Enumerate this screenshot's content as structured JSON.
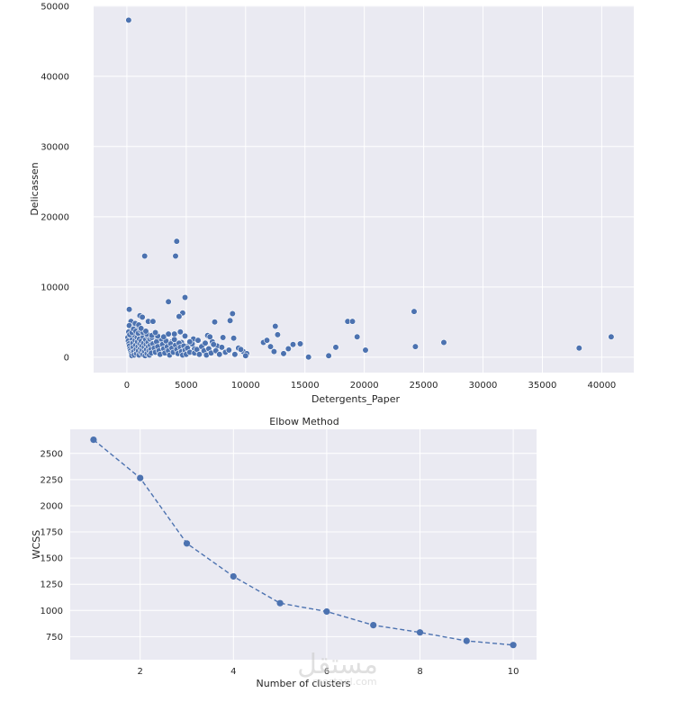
{
  "colors": {
    "panel_bg": "#eaeaf2",
    "grid": "#ffffff",
    "marker": "#4c72b0",
    "marker_edge": "#ffffff"
  },
  "watermark": {
    "main": "مستقل",
    "sub": "mostaql.com"
  },
  "chart_data": [
    {
      "type": "scatter",
      "title": "",
      "xlabel": "Detergents_Paper",
      "ylabel": "Delicassen",
      "xlim": [
        -2800,
        42700
      ],
      "ylim": [
        -2200,
        50100
      ],
      "grid": true,
      "xticks": [
        0,
        5000,
        10000,
        15000,
        20000,
        25000,
        30000,
        35000,
        40000
      ],
      "yticks": [
        0,
        10000,
        20000,
        30000,
        40000,
        50000
      ],
      "points": [
        [
          150,
          48000
        ],
        [
          1500,
          14400
        ],
        [
          4200,
          16500
        ],
        [
          4100,
          14400
        ],
        [
          3500,
          7900
        ],
        [
          4900,
          8500
        ],
        [
          4700,
          6300
        ],
        [
          4400,
          5800
        ],
        [
          1100,
          5900
        ],
        [
          1300,
          5700
        ],
        [
          1800,
          5100
        ],
        [
          2200,
          5100
        ],
        [
          7400,
          5000
        ],
        [
          8700,
          5200
        ],
        [
          8900,
          6200
        ],
        [
          12500,
          4400
        ],
        [
          18600,
          5100
        ],
        [
          19000,
          5100
        ],
        [
          24200,
          6500
        ],
        [
          200,
          6800
        ],
        [
          350,
          5100
        ],
        [
          200,
          4500
        ],
        [
          650,
          4400
        ],
        [
          850,
          4200
        ],
        [
          450,
          3800
        ],
        [
          1050,
          3300
        ],
        [
          1450,
          3000
        ],
        [
          1950,
          2500
        ],
        [
          2500,
          2700
        ],
        [
          2900,
          2400
        ],
        [
          3300,
          2000
        ],
        [
          4000,
          3300
        ],
        [
          3800,
          2200
        ],
        [
          4600,
          2100
        ],
        [
          5200,
          1600
        ],
        [
          5700,
          1200
        ],
        [
          6400,
          1700
        ],
        [
          6800,
          3100
        ],
        [
          7200,
          2200
        ],
        [
          7600,
          1600
        ],
        [
          8100,
          2800
        ],
        [
          9000,
          2700
        ],
        [
          9400,
          1300
        ],
        [
          9800,
          800
        ],
        [
          10100,
          500
        ],
        [
          11500,
          2100
        ],
        [
          11800,
          2400
        ],
        [
          12100,
          1500
        ],
        [
          12400,
          800
        ],
        [
          12700,
          3200
        ],
        [
          13200,
          500
        ],
        [
          13600,
          1200
        ],
        [
          14000,
          1800
        ],
        [
          14600,
          1900
        ],
        [
          15300,
          0
        ],
        [
          17000,
          200
        ],
        [
          17600,
          1400
        ],
        [
          19400,
          2900
        ],
        [
          20100,
          1000
        ],
        [
          24300,
          1500
        ],
        [
          26700,
          2100
        ],
        [
          38100,
          1300
        ],
        [
          40800,
          2900
        ],
        [
          80,
          2800
        ],
        [
          120,
          2300
        ],
        [
          180,
          1900
        ],
        [
          220,
          1600
        ],
        [
          260,
          1200
        ],
        [
          300,
          900
        ],
        [
          340,
          600
        ],
        [
          380,
          400
        ],
        [
          420,
          200
        ],
        [
          460,
          2600
        ],
        [
          500,
          2000
        ],
        [
          540,
          1400
        ],
        [
          580,
          800
        ],
        [
          620,
          300
        ],
        [
          660,
          3100
        ],
        [
          700,
          2400
        ],
        [
          740,
          1700
        ],
        [
          780,
          1100
        ],
        [
          820,
          500
        ],
        [
          860,
          2800
        ],
        [
          900,
          2200
        ],
        [
          940,
          1500
        ],
        [
          980,
          900
        ],
        [
          1020,
          300
        ],
        [
          1060,
          2600
        ],
        [
          1100,
          1900
        ],
        [
          1140,
          1300
        ],
        [
          1180,
          700
        ],
        [
          1220,
          2300
        ],
        [
          1260,
          1600
        ],
        [
          1300,
          1000
        ],
        [
          1340,
          400
        ],
        [
          1380,
          2900
        ],
        [
          1420,
          2000
        ],
        [
          1460,
          1400
        ],
        [
          1500,
          800
        ],
        [
          1540,
          200
        ],
        [
          1580,
          2500
        ],
        [
          1620,
          1800
        ],
        [
          1660,
          1100
        ],
        [
          1700,
          500
        ],
        [
          1740,
          3000
        ],
        [
          1780,
          2100
        ],
        [
          1820,
          1500
        ],
        [
          1860,
          900
        ],
        [
          1900,
          300
        ],
        [
          1940,
          2600
        ],
        [
          1980,
          1700
        ],
        [
          2020,
          1100
        ],
        [
          2060,
          600
        ],
        [
          2100,
          2800
        ],
        [
          2200,
          1900
        ],
        [
          2300,
          1300
        ],
        [
          2400,
          700
        ],
        [
          2500,
          2200
        ],
        [
          2600,
          1500
        ],
        [
          2700,
          900
        ],
        [
          2800,
          400
        ],
        [
          2900,
          2600
        ],
        [
          3000,
          1800
        ],
        [
          3100,
          1200
        ],
        [
          3200,
          600
        ],
        [
          3300,
          2300
        ],
        [
          3400,
          1500
        ],
        [
          3500,
          900
        ],
        [
          3600,
          300
        ],
        [
          3700,
          1900
        ],
        [
          3800,
          1300
        ],
        [
          3900,
          700
        ],
        [
          4000,
          2500
        ],
        [
          4100,
          1700
        ],
        [
          4200,
          1100
        ],
        [
          4300,
          500
        ],
        [
          4400,
          2000
        ],
        [
          4500,
          1400
        ],
        [
          4600,
          800
        ],
        [
          4700,
          300
        ],
        [
          4800,
          1600
        ],
        [
          4900,
          1000
        ],
        [
          5000,
          400
        ],
        [
          5100,
          1300
        ],
        [
          5300,
          700
        ],
        [
          5500,
          1900
        ],
        [
          5700,
          600
        ],
        [
          5900,
          1100
        ],
        [
          6100,
          400
        ],
        [
          6300,
          1500
        ],
        [
          6500,
          900
        ],
        [
          6700,
          300
        ],
        [
          6900,
          1200
        ],
        [
          7100,
          600
        ],
        [
          7300,
          1800
        ],
        [
          7500,
          900
        ],
        [
          7800,
          400
        ],
        [
          8000,
          1400
        ],
        [
          8300,
          700
        ],
        [
          8600,
          1000
        ],
        [
          9100,
          400
        ],
        [
          9600,
          1100
        ],
        [
          10000,
          200
        ],
        [
          160,
          3600
        ],
        [
          240,
          3200
        ],
        [
          420,
          3500
        ],
        [
          560,
          4000
        ],
        [
          760,
          3700
        ],
        [
          960,
          3400
        ],
        [
          1160,
          3800
        ],
        [
          1360,
          3500
        ],
        [
          1700,
          3300
        ],
        [
          2100,
          3100
        ],
        [
          2600,
          3000
        ],
        [
          3100,
          2900
        ],
        [
          3500,
          3300
        ],
        [
          4500,
          3600
        ],
        [
          4900,
          3000
        ],
        [
          5600,
          2600
        ],
        [
          6000,
          2400
        ],
        [
          6600,
          2000
        ],
        [
          7000,
          2900
        ],
        [
          5300,
          2200
        ],
        [
          700,
          4800
        ],
        [
          1000,
          4600
        ],
        [
          1200,
          4100
        ],
        [
          1600,
          3700
        ],
        [
          2400,
          3500
        ]
      ]
    },
    {
      "type": "line",
      "title": "Elbow Method",
      "xlabel": "Number of clusters",
      "ylabel": "WCSS",
      "xlim": [
        0.5,
        10.5
      ],
      "ylim": [
        530,
        2730
      ],
      "grid": true,
      "xticks": [
        2,
        4,
        6,
        8,
        10
      ],
      "yticks": [
        750,
        1000,
        1250,
        1500,
        1750,
        2000,
        2250,
        2500
      ],
      "x": [
        1,
        2,
        3,
        4,
        5,
        6,
        7,
        8,
        9,
        10
      ],
      "y": [
        2630,
        2265,
        1640,
        1325,
        1070,
        990,
        860,
        790,
        710,
        670
      ],
      "line_style": "dashed",
      "marker": "circle"
    }
  ]
}
